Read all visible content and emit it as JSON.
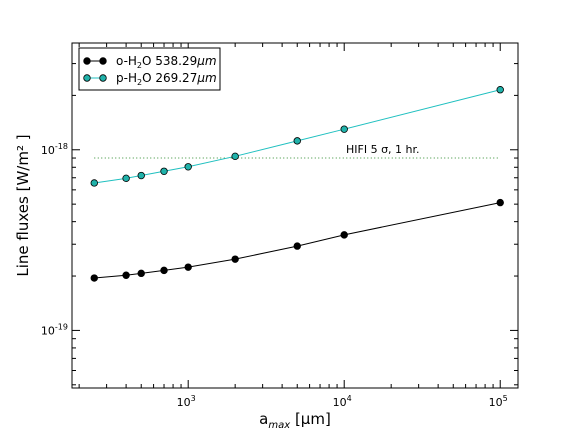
{
  "chart_data": {
    "type": "line",
    "xscale": "log",
    "yscale": "log",
    "xlim": [
      180,
      130000
    ],
    "ylim": [
      4.8e-20,
      3.9e-18
    ],
    "xlabel": {
      "base": "a",
      "sub": "max",
      "rest": " [μm]"
    },
    "ylabel": "Line fluxes [W/m² ]",
    "x_ticks": [
      {
        "value": 1000,
        "base": "10",
        "exp": "3"
      },
      {
        "value": 10000,
        "base": "10",
        "exp": "4"
      },
      {
        "value": 100000,
        "base": "10",
        "exp": "5"
      }
    ],
    "y_ticks": [
      {
        "value": 1e-19,
        "base": "10",
        "exp": "-19"
      },
      {
        "value": 1e-18,
        "base": "10",
        "exp": "-18"
      }
    ],
    "legend_position": "top-left",
    "series": [
      {
        "name": "o-H₂O 538.29μm",
        "name_parts": {
          "pre": "o-H",
          "sub": "2",
          "post": "O 538.29",
          "unit": "μm"
        },
        "line_color": "#000000",
        "marker_color": "#000000",
        "x": [
          250,
          400,
          500,
          700,
          1000,
          2000,
          5000,
          10000,
          100000
        ],
        "y": [
          1.95e-19,
          2.02e-19,
          2.07e-19,
          2.15e-19,
          2.24e-19,
          2.48e-19,
          2.93e-19,
          3.38e-19,
          5.1e-19
        ]
      },
      {
        "name": "p-H₂O 269.27μm",
        "name_parts": {
          "pre": "p-H",
          "sub": "2",
          "post": "O 269.27",
          "unit": "μm"
        },
        "line_color": "#20c0c0",
        "marker_color": "#20b2aa",
        "x": [
          250,
          400,
          500,
          700,
          1000,
          2000,
          5000,
          10000,
          100000
        ],
        "y": [
          6.55e-19,
          6.95e-19,
          7.2e-19,
          7.6e-19,
          8.05e-19,
          9.2e-19,
          1.12e-18,
          1.3e-18,
          2.15e-18
        ]
      }
    ],
    "reference_line": {
      "y": 9e-19,
      "color": "#2e8b2e",
      "style": "dotted",
      "label": "HIFI 5 σ, 1 hr."
    }
  }
}
